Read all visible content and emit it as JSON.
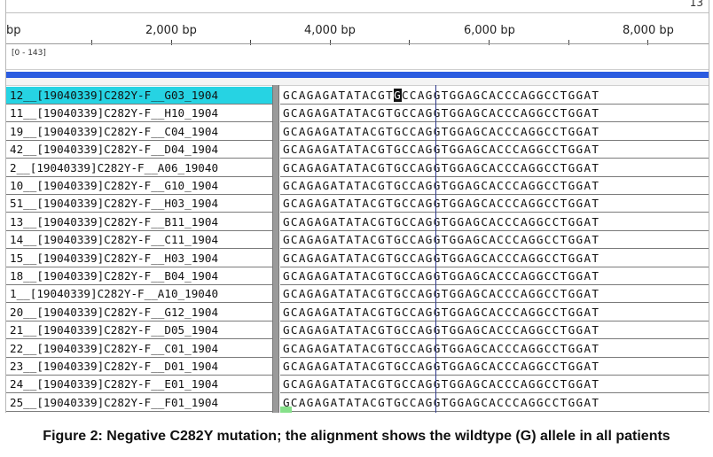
{
  "ruler": {
    "left_fragment": "bp",
    "top_right_fragment": "13",
    "labels": [
      "2,000 bp",
      "4,000 bp",
      "6,000 bp",
      "8,000 bp"
    ]
  },
  "coverage": {
    "range": "[0 - 143]"
  },
  "colors": {
    "selected_row": "#26d3e3",
    "blue_bar": "#2b5ce0",
    "highlight_base": "#111111",
    "cursor_line": "#2f3a8c"
  },
  "alignment": {
    "sequence_prefix": "GCAGAGATATACGT",
    "highlighted_base": "G",
    "sequence_suffix": "CCAGGTGGAGCACCCAGGCCTGGAT",
    "rows": [
      {
        "name": "12__[19040339]C282Y-F__G03_1904",
        "selected": true
      },
      {
        "name": "11__[19040339]C282Y-F__H10_1904"
      },
      {
        "name": "19__[19040339]C282Y-F__C04_1904"
      },
      {
        "name": "42__[19040339]C282Y-F__D04_1904"
      },
      {
        "name": "2__[19040339]C282Y-F__A06_19040"
      },
      {
        "name": "10__[19040339]C282Y-F__G10_1904"
      },
      {
        "name": "51__[19040339]C282Y-F__H03_1904"
      },
      {
        "name": "13__[19040339]C282Y-F__B11_1904"
      },
      {
        "name": "14__[19040339]C282Y-F__C11_1904"
      },
      {
        "name": "15__[19040339]C282Y-F__H03_1904"
      },
      {
        "name": "18__[19040339]C282Y-F__B04_1904"
      },
      {
        "name": "1__[19040339]C282Y-F__A10_19040"
      },
      {
        "name": "20__[19040339]C282Y-F__G12_1904"
      },
      {
        "name": "21__[19040339]C282Y-F__D05_1904"
      },
      {
        "name": "22__[19040339]C282Y-F__C01_1904"
      },
      {
        "name": "23__[19040339]C282Y-F__D01_1904"
      },
      {
        "name": "24__[19040339]C282Y-F__E01_1904"
      },
      {
        "name": "25__[19040339]C282Y-F__F01_1904"
      }
    ]
  },
  "caption": "Figure 2: Negative C282Y mutation; the alignment shows the wildtype (G) allele in all patients"
}
